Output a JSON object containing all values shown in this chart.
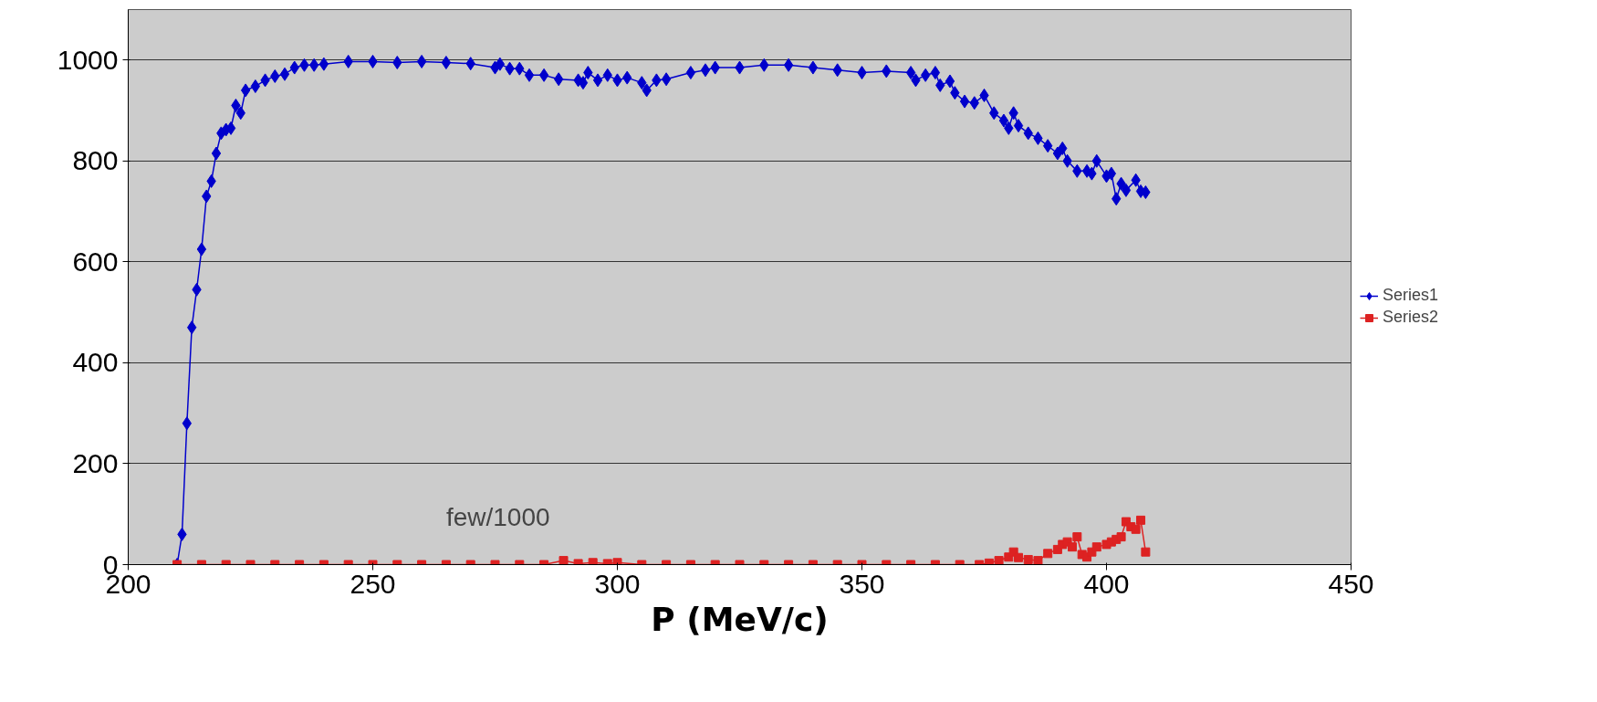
{
  "chart_data": {
    "type": "line",
    "xlabel": "P (MeV/c)",
    "xlim": [
      200,
      450
    ],
    "xticks": [
      200,
      250,
      300,
      350,
      400,
      450
    ],
    "ylim": [
      0,
      1100
    ],
    "yticks": [
      0,
      200,
      400,
      600,
      800,
      1000
    ],
    "grid": "y",
    "legend": "right",
    "line_style": "solid",
    "annotations": [
      "few/1000"
    ],
    "series": [
      {
        "name": "Series1",
        "color": "#0000cc",
        "marker": "diamond",
        "x": [
          210,
          211,
          212,
          213,
          214,
          215,
          216,
          217,
          218,
          219,
          220,
          221,
          222,
          223,
          224,
          226,
          228,
          230,
          232,
          234,
          236,
          238,
          240,
          245,
          250,
          255,
          260,
          265,
          270,
          275,
          276,
          278,
          280,
          282,
          285,
          288,
          292,
          293,
          294,
          296,
          298,
          300,
          302,
          305,
          306,
          308,
          310,
          315,
          318,
          320,
          325,
          330,
          335,
          340,
          345,
          350,
          355,
          360,
          361,
          363,
          365,
          366,
          368,
          369,
          371,
          373,
          375,
          377,
          379,
          380,
          381,
          382,
          384,
          386,
          388,
          390,
          391,
          392,
          394,
          396,
          397,
          398,
          400,
          401,
          402,
          403,
          404,
          406,
          407,
          408
        ],
        "values": [
          0,
          60,
          280,
          470,
          545,
          625,
          730,
          760,
          815,
          855,
          862,
          865,
          910,
          895,
          940,
          948,
          960,
          968,
          972,
          985,
          990,
          990,
          992,
          997,
          997,
          995,
          997,
          995,
          993,
          985,
          992,
          983,
          983,
          970,
          970,
          962,
          960,
          955,
          975,
          960,
          970,
          960,
          965,
          955,
          940,
          960,
          962,
          975,
          980,
          985,
          985,
          990,
          990,
          985,
          980,
          975,
          978,
          975,
          960,
          970,
          975,
          950,
          958,
          935,
          918,
          915,
          930,
          895,
          880,
          865,
          895,
          870,
          855,
          845,
          830,
          815,
          825,
          800,
          780,
          780,
          775,
          800,
          770,
          775,
          725,
          755,
          742,
          762,
          740,
          738
        ]
      },
      {
        "name": "Series2",
        "color": "#dd2222",
        "marker": "square",
        "x": [
          210,
          215,
          220,
          225,
          230,
          235,
          240,
          245,
          250,
          255,
          260,
          265,
          270,
          275,
          280,
          285,
          289,
          292,
          295,
          298,
          300,
          305,
          310,
          315,
          320,
          325,
          330,
          335,
          340,
          345,
          350,
          355,
          360,
          365,
          370,
          374,
          376,
          378,
          380,
          381,
          382,
          384,
          386,
          388,
          390,
          391,
          392,
          393,
          394,
          395,
          396,
          397,
          398,
          400,
          401,
          402,
          403,
          404,
          405,
          406,
          407,
          408
        ],
        "values": [
          0,
          0,
          0,
          0,
          0,
          0,
          0,
          0,
          0,
          0,
          0,
          0,
          0,
          0,
          0,
          0,
          8,
          2,
          4,
          2,
          4,
          0,
          0,
          0,
          0,
          0,
          0,
          0,
          0,
          0,
          0,
          0,
          0,
          0,
          0,
          0,
          3,
          8,
          15,
          25,
          14,
          10,
          8,
          22,
          30,
          40,
          45,
          35,
          55,
          20,
          15,
          25,
          35,
          40,
          45,
          50,
          55,
          85,
          75,
          70,
          88,
          25
        ]
      }
    ]
  }
}
